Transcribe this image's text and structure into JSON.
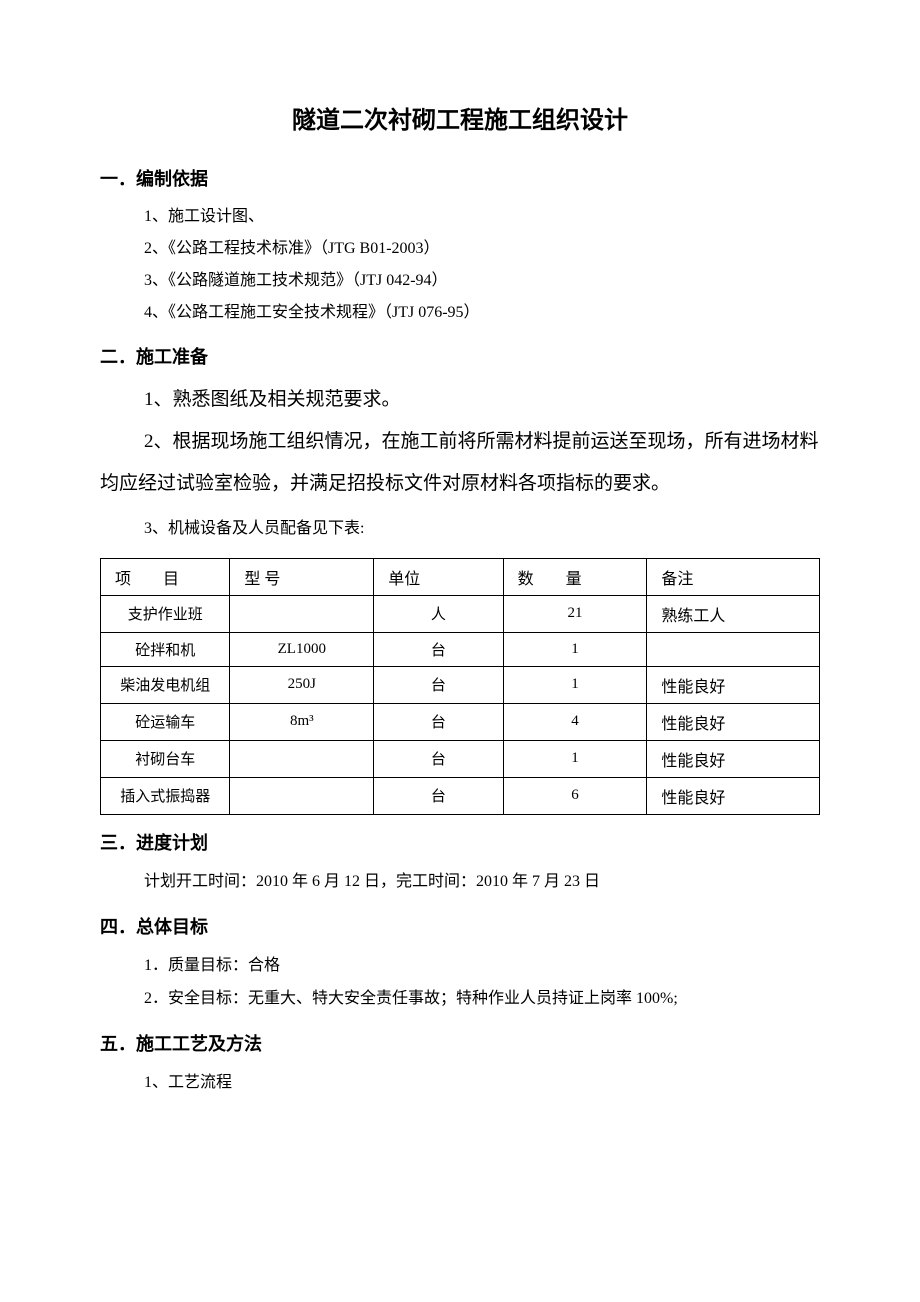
{
  "title": "隧道二次衬砌工程施工组织设计",
  "s1": {
    "heading": "一．编制依据",
    "items": [
      "1、施工设计图、",
      "2、《公路工程技术标准》（JTG B01-2003）",
      "3、《公路隧道施工技术规范》（JTJ 042-94）",
      "4、《公路工程施工安全技术规程》（JTJ 076-95）"
    ]
  },
  "s2": {
    "heading": "二．施工准备",
    "item1": "1、熟悉图纸及相关规范要求。",
    "item2": "2、根据现场施工组织情况，在施工前将所需材料提前运送至现场，所有进场材料均应经过试验室检验，并满足招投标文件对原材料各项指标的要求。",
    "item3": "3、机械设备及人员配备见下表:"
  },
  "table": {
    "headers": {
      "item": "项　　目",
      "model": "型  号",
      "unit": "单位",
      "qty": "数　　量",
      "remark": "备注"
    },
    "rows": [
      {
        "item": "支护作业班",
        "model": "",
        "unit": "人",
        "qty": "21",
        "remark": "熟练工人"
      },
      {
        "item": "砼拌和机",
        "model": "ZL1000",
        "unit": "台",
        "qty": "1",
        "remark": ""
      },
      {
        "item": "柴油发电机组",
        "model": "250J",
        "unit": "台",
        "qty": "1",
        "remark": "性能良好"
      },
      {
        "item": "砼运输车",
        "model": "8m³",
        "unit": "台",
        "qty": "4",
        "remark": "性能良好"
      },
      {
        "item": "衬砌台车",
        "model": "",
        "unit": "台",
        "qty": "1",
        "remark": "性能良好"
      },
      {
        "item": "插入式振捣器",
        "model": "",
        "unit": "台",
        "qty": "6",
        "remark": "性能良好"
      }
    ]
  },
  "s3": {
    "heading": "三．进度计划",
    "text": "计划开工时间：2010 年 6 月 12 日，完工时间：2010 年 7 月 23 日"
  },
  "s4": {
    "heading": "四．总体目标",
    "items": [
      "1．质量目标：合格",
      "2．安全目标：无重大、特大安全责任事故；特种作业人员持证上岗率 100%;"
    ]
  },
  "s5": {
    "heading": "五．施工工艺及方法",
    "items": [
      "1、工艺流程"
    ]
  }
}
